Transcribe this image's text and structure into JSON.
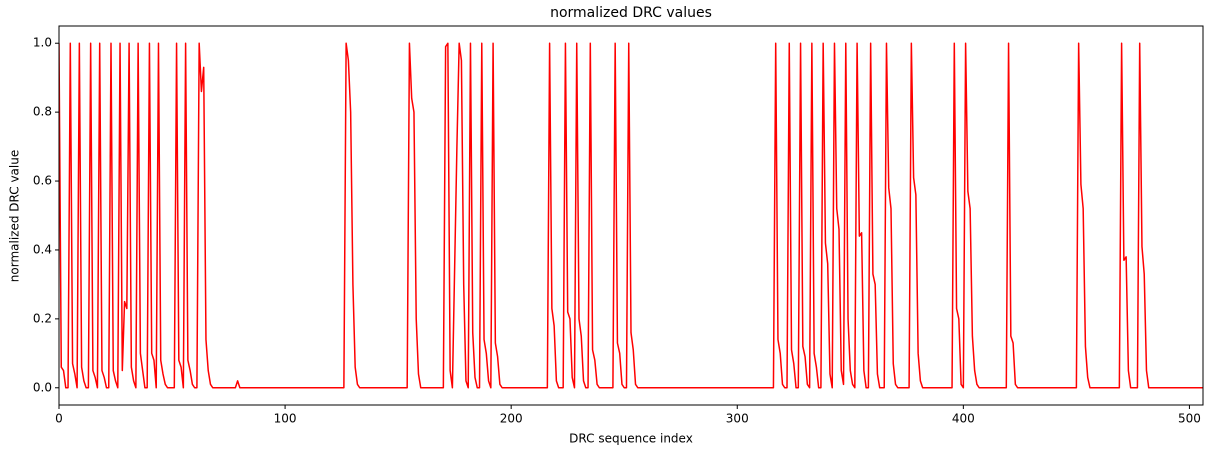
{
  "chart_data": {
    "type": "line",
    "title": "normalized DRC values",
    "x_label": "DRC sequence index",
    "y_label": "normalized DRC value",
    "x": [
      0,
      1,
      2,
      3,
      4,
      5,
      6,
      7,
      8,
      9,
      10,
      11,
      12,
      13,
      14,
      15,
      16,
      17,
      18,
      19,
      20,
      21,
      22,
      23,
      24,
      25,
      26,
      27,
      28,
      29,
      30,
      31,
      32,
      33,
      34,
      35,
      36,
      37,
      38,
      39,
      40,
      41,
      42,
      43,
      44,
      45,
      46,
      47,
      48,
      51,
      52,
      53,
      54,
      55,
      56,
      57,
      58,
      59,
      60,
      61,
      62,
      63,
      64,
      65,
      66,
      67,
      68,
      78,
      79,
      80,
      126,
      127,
      128,
      129,
      130,
      131,
      132,
      133,
      154,
      155,
      156,
      157,
      158,
      159,
      160,
      170,
      171,
      172,
      173,
      174,
      176,
      177,
      178,
      179,
      180,
      181,
      182,
      183,
      184,
      185,
      186,
      187,
      188,
      189,
      190,
      191,
      192,
      193,
      194,
      195,
      196,
      216,
      217,
      218,
      219,
      220,
      221,
      223,
      224,
      225,
      226,
      227,
      228,
      229,
      230,
      231,
      232,
      233,
      234,
      235,
      236,
      237,
      238,
      239,
      245,
      246,
      247,
      248,
      249,
      250,
      251,
      252,
      253,
      254,
      255,
      256,
      316,
      317,
      318,
      319,
      320,
      321,
      322,
      323,
      324,
      325,
      326,
      327,
      328,
      329,
      330,
      331,
      332,
      333,
      334,
      335,
      336,
      337,
      338,
      339,
      340,
      341,
      342,
      343,
      344,
      345,
      346,
      347,
      348,
      349,
      350,
      351,
      352,
      353,
      354,
      355,
      356,
      357,
      358,
      359,
      360,
      361,
      362,
      363,
      365,
      366,
      367,
      368,
      369,
      370,
      371,
      376,
      377,
      378,
      379,
      380,
      381,
      382,
      395,
      396,
      397,
      398,
      399,
      400,
      401,
      402,
      403,
      404,
      405,
      406,
      407,
      419,
      420,
      421,
      422,
      423,
      424,
      450,
      451,
      452,
      453,
      454,
      455,
      456,
      469,
      470,
      471,
      472,
      473,
      474,
      477,
      478,
      479,
      480,
      481,
      482,
      506
    ],
    "series": [
      {
        "color": "#ff0000",
        "values": [
          1,
          0.06,
          0.05,
          0,
          0,
          1,
          0.07,
          0.04,
          0,
          1,
          0.06,
          0.02,
          0,
          0,
          1,
          0.05,
          0.03,
          0,
          1,
          0.05,
          0.03,
          0,
          0,
          1,
          0.05,
          0.02,
          0,
          1,
          0.05,
          0.25,
          0.23,
          1,
          0.06,
          0.02,
          0,
          1,
          0.1,
          0.05,
          0,
          0,
          1,
          0.1,
          0.08,
          0,
          1,
          0.08,
          0.04,
          0.01,
          0,
          0,
          1,
          0.08,
          0.06,
          0,
          1,
          0.08,
          0.05,
          0.01,
          0,
          0,
          1,
          0.86,
          0.93,
          0.14,
          0.05,
          0.01,
          0,
          0,
          0.02,
          0,
          0,
          1,
          0.95,
          0.8,
          0.3,
          0.06,
          0.01,
          0,
          0,
          1,
          0.84,
          0.8,
          0.2,
          0.04,
          0,
          0,
          0.99,
          1,
          0.05,
          0,
          0.7,
          1,
          0.95,
          0.3,
          0.02,
          0,
          1,
          0.16,
          0.03,
          0,
          0,
          1,
          0.14,
          0.1,
          0.02,
          0,
          1,
          0.13,
          0.09,
          0.01,
          0,
          0,
          1,
          0.23,
          0.18,
          0.02,
          0,
          0,
          1,
          0.22,
          0.2,
          0.03,
          0,
          1,
          0.2,
          0.15,
          0.02,
          0,
          0,
          1,
          0.11,
          0.08,
          0.01,
          0,
          0,
          1,
          0.13,
          0.1,
          0.01,
          0,
          0,
          1,
          0.16,
          0.11,
          0.01,
          0,
          0,
          1,
          0.14,
          0.1,
          0.01,
          0,
          0,
          1,
          0.11,
          0.07,
          0,
          0,
          1,
          0.12,
          0.09,
          0.01,
          0,
          1,
          0.1,
          0.06,
          0,
          0,
          1,
          0.42,
          0.36,
          0.04,
          0,
          1,
          0.52,
          0.46,
          0.05,
          0.01,
          1,
          0.2,
          0.05,
          0.01,
          0,
          1,
          0.44,
          0.45,
          0.05,
          0,
          0,
          1,
          0.33,
          0.3,
          0.04,
          0,
          0,
          1,
          0.58,
          0.52,
          0.07,
          0.01,
          0,
          0,
          1,
          0.61,
          0.56,
          0.1,
          0.02,
          0,
          0,
          1,
          0.23,
          0.2,
          0.01,
          0,
          1,
          0.57,
          0.52,
          0.15,
          0.05,
          0.01,
          0,
          0,
          1,
          0.15,
          0.13,
          0.01,
          0,
          0,
          1,
          0.59,
          0.52,
          0.12,
          0.03,
          0,
          0,
          1,
          0.37,
          0.38,
          0.05,
          0,
          0,
          1,
          0.41,
          0.33,
          0.05,
          0,
          0
        ]
      }
    ],
    "xlim": [
      0,
      506
    ],
    "ylim": [
      -0.05,
      1.05
    ],
    "xticks": [
      0,
      100,
      200,
      300,
      400,
      500
    ],
    "yticks": [
      {
        "value": 0,
        "label": "0.0"
      },
      0.2,
      0.4,
      0.6,
      0.8,
      {
        "value": 1,
        "label": "1.0"
      }
    ],
    "grid": false
  }
}
